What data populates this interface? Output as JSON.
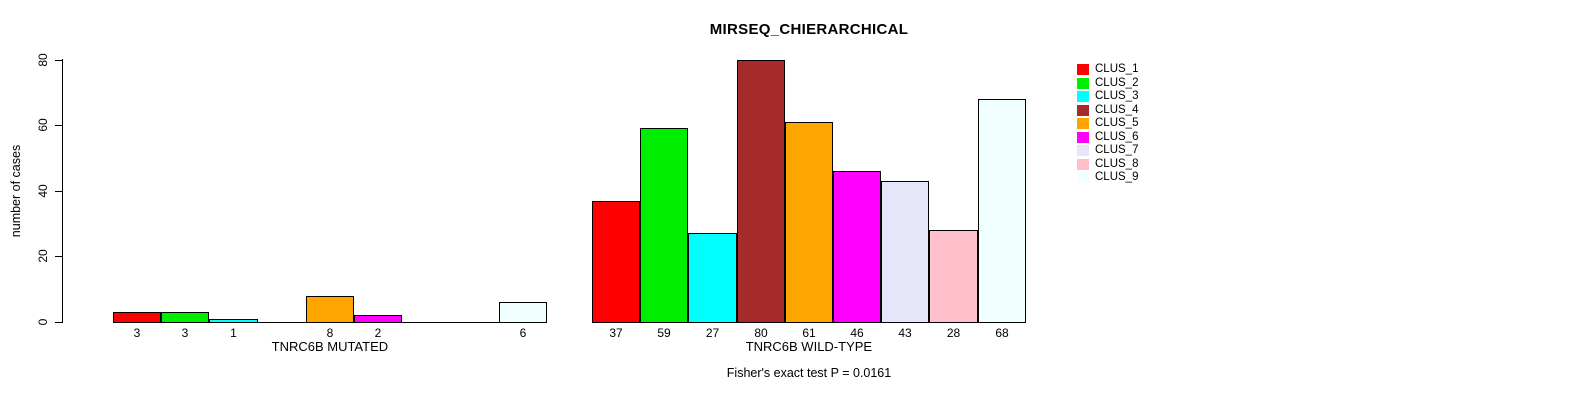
{
  "chart_data": {
    "type": "bar",
    "title": "MIRSEQ_CHIERARCHICAL",
    "ylabel": "number of cases",
    "ylim": [
      0,
      80
    ],
    "yticks": [
      0,
      20,
      40,
      60,
      80
    ],
    "grid": false,
    "legend_position": "right",
    "clusters": [
      {
        "name": "CLUS_1",
        "color": "#FF0000"
      },
      {
        "name": "CLUS_2",
        "color": "#00EE00"
      },
      {
        "name": "CLUS_3",
        "color": "#00FFFF"
      },
      {
        "name": "CLUS_4",
        "color": "#A52A2A"
      },
      {
        "name": "CLUS_5",
        "color": "#FFA500"
      },
      {
        "name": "CLUS_6",
        "color": "#FF00FF"
      },
      {
        "name": "CLUS_7",
        "color": "#E6E6FA"
      },
      {
        "name": "CLUS_8",
        "color": "#FFC0CB"
      },
      {
        "name": "CLUS_9",
        "color": "#F0FFFF"
      }
    ],
    "groups": [
      {
        "label": "TNRC6B MUTATED",
        "values": [
          3,
          3,
          1,
          0,
          8,
          2,
          0,
          0,
          6
        ]
      },
      {
        "label": "TNRC6B WILD-TYPE",
        "values": [
          37,
          59,
          27,
          80,
          61,
          46,
          43,
          28,
          68
        ]
      }
    ],
    "zero_value_labels_hidden": true,
    "footnote": "Fisher's exact test P = 0.0161"
  }
}
